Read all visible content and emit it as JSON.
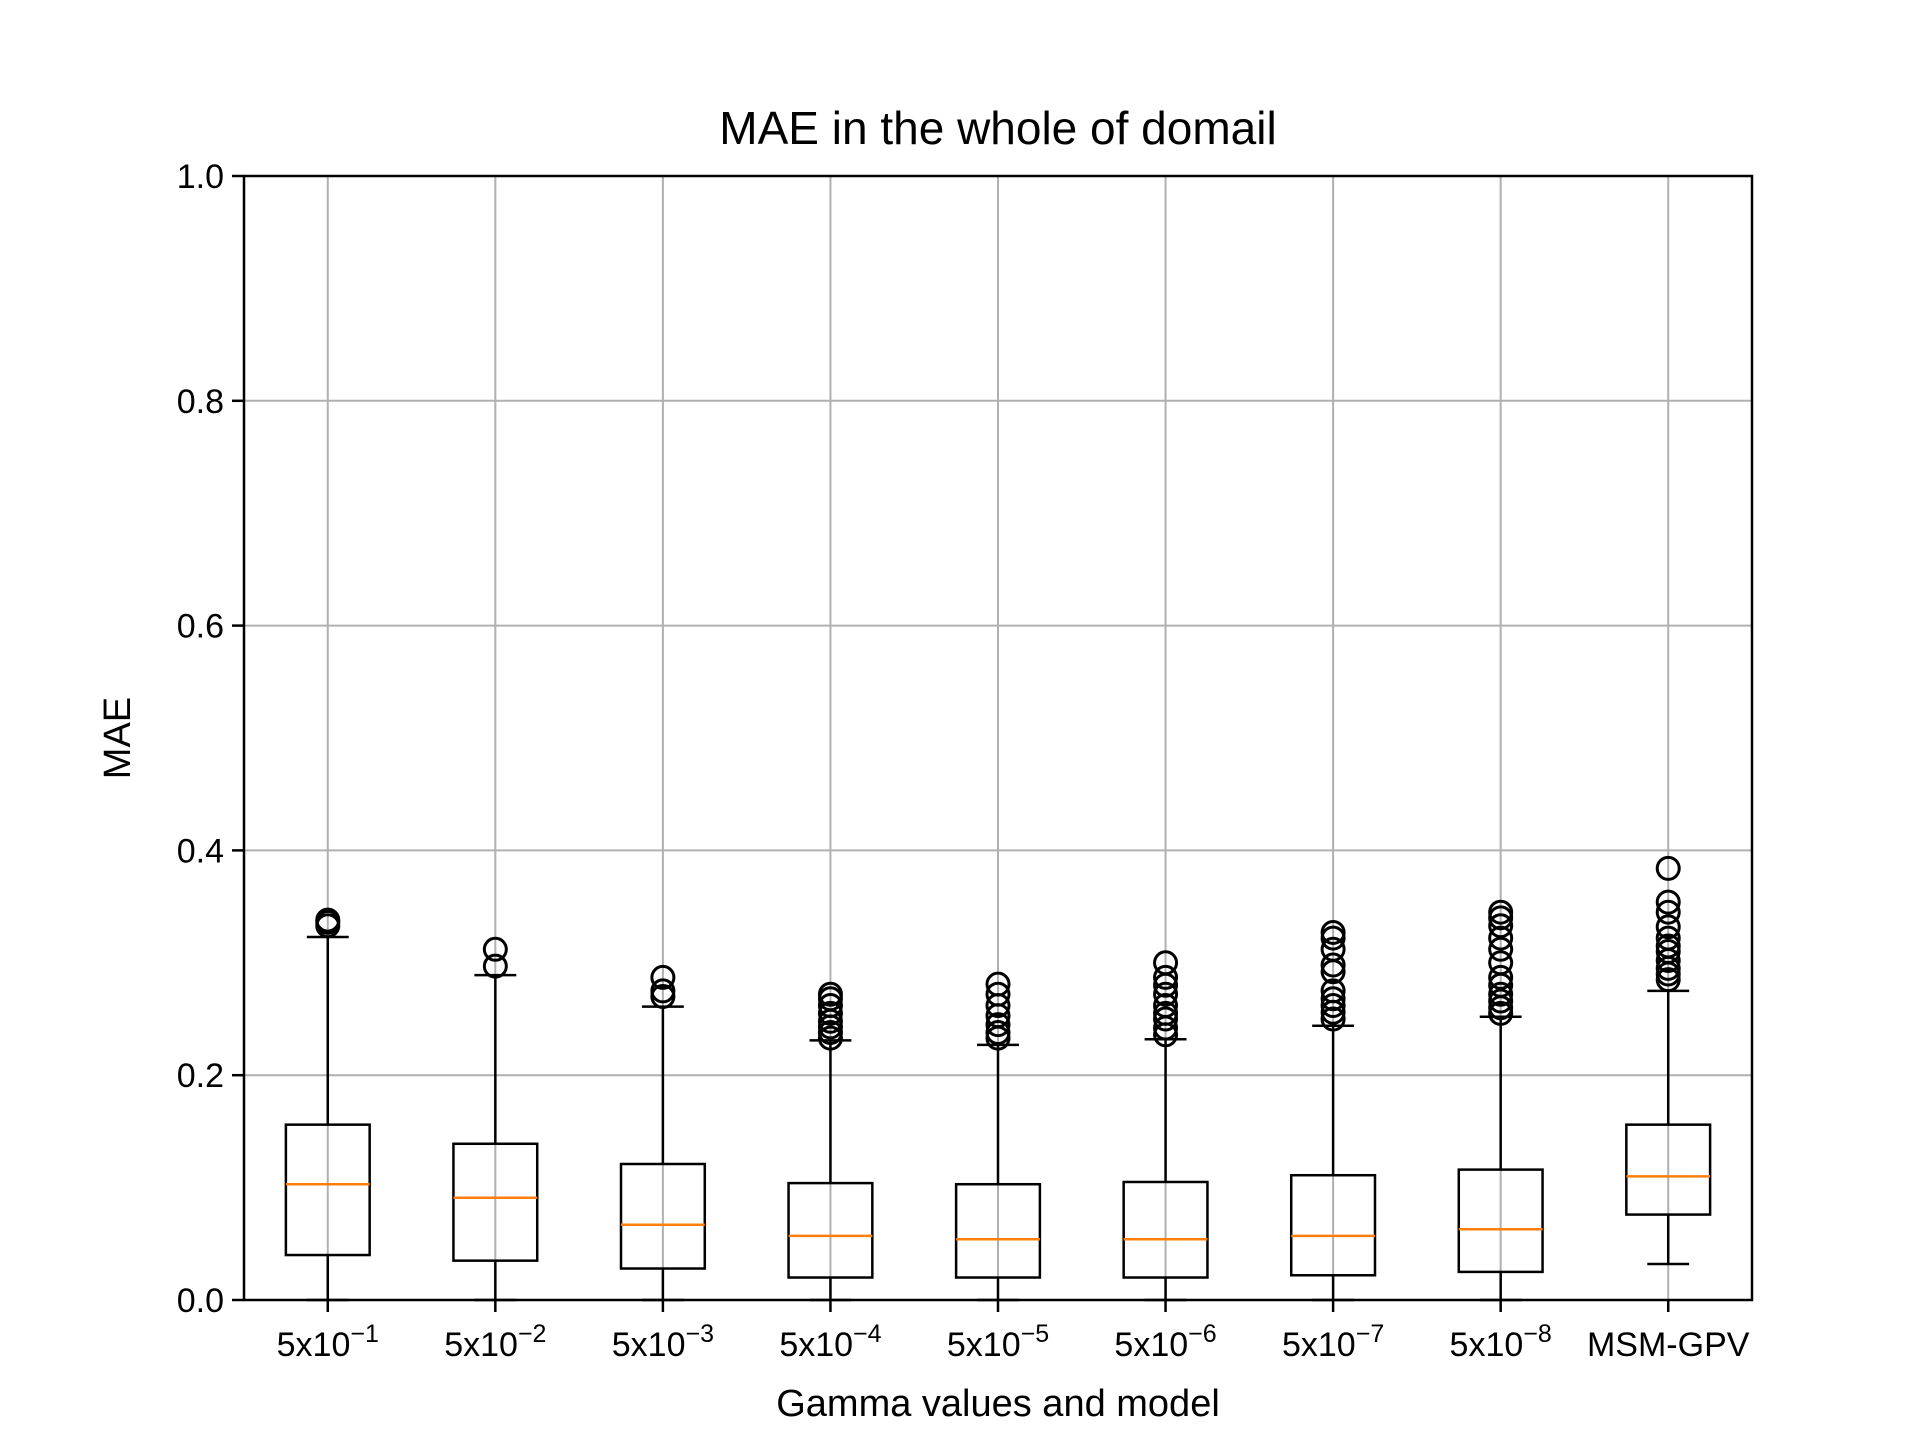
{
  "chart_data": {
    "type": "box",
    "title": "MAE in the whole of domail",
    "xlabel": "Gamma values and model",
    "ylabel": "MAE",
    "ylim": [
      0.0,
      1.0
    ],
    "yticks": [
      0.0,
      0.2,
      0.4,
      0.6,
      0.8,
      1.0
    ],
    "ytick_labels": [
      "0.0",
      "0.2",
      "0.4",
      "0.6",
      "0.8",
      "1.0"
    ],
    "grid": true,
    "colors": {
      "box": "#000000",
      "median": "#ff7f0e",
      "grid": "#b0b0b0"
    },
    "categories": [
      {
        "base": "5x10",
        "exp": "−1"
      },
      {
        "base": "5x10",
        "exp": "−2"
      },
      {
        "base": "5x10",
        "exp": "−3"
      },
      {
        "base": "5x10",
        "exp": "−4"
      },
      {
        "base": "5x10",
        "exp": "−5"
      },
      {
        "base": "5x10",
        "exp": "−6"
      },
      {
        "base": "5x10",
        "exp": "−7"
      },
      {
        "base": "5x10",
        "exp": "−8"
      },
      {
        "base": "MSM-GPV",
        "exp": ""
      }
    ],
    "boxes": [
      {
        "whislo": 0.0,
        "q1": 0.04,
        "med": 0.103,
        "q3": 0.156,
        "whishi": 0.323,
        "fliers": [
          0.333,
          0.336,
          0.338
        ]
      },
      {
        "whislo": 0.0,
        "q1": 0.035,
        "med": 0.091,
        "q3": 0.139,
        "whishi": 0.289,
        "fliers": [
          0.297,
          0.312
        ]
      },
      {
        "whislo": 0.0,
        "q1": 0.028,
        "med": 0.067,
        "q3": 0.121,
        "whishi": 0.261,
        "fliers": [
          0.27,
          0.275,
          0.287
        ]
      },
      {
        "whislo": 0.0,
        "q1": 0.02,
        "med": 0.057,
        "q3": 0.104,
        "whishi": 0.231,
        "fliers": [
          0.233,
          0.238,
          0.243,
          0.248,
          0.255,
          0.262,
          0.268,
          0.272
        ]
      },
      {
        "whislo": 0.0,
        "q1": 0.02,
        "med": 0.054,
        "q3": 0.103,
        "whishi": 0.227,
        "fliers": [
          0.233,
          0.238,
          0.245,
          0.253,
          0.262,
          0.272,
          0.281
        ]
      },
      {
        "whislo": 0.0,
        "q1": 0.02,
        "med": 0.054,
        "q3": 0.105,
        "whishi": 0.232,
        "fliers": [
          0.236,
          0.242,
          0.25,
          0.255,
          0.262,
          0.272,
          0.28,
          0.287,
          0.3
        ]
      },
      {
        "whislo": 0.0,
        "q1": 0.022,
        "med": 0.057,
        "q3": 0.111,
        "whishi": 0.244,
        "fliers": [
          0.25,
          0.256,
          0.262,
          0.268,
          0.275,
          0.292,
          0.298,
          0.312,
          0.322,
          0.327
        ]
      },
      {
        "whislo": 0.0,
        "q1": 0.025,
        "med": 0.063,
        "q3": 0.116,
        "whishi": 0.252,
        "fliers": [
          0.255,
          0.26,
          0.266,
          0.272,
          0.28,
          0.287,
          0.3,
          0.312,
          0.322,
          0.333,
          0.34,
          0.345
        ]
      },
      {
        "whislo": 0.032,
        "q1": 0.076,
        "med": 0.11,
        "q3": 0.156,
        "whishi": 0.275,
        "fliers": [
          0.285,
          0.29,
          0.295,
          0.302,
          0.31,
          0.315,
          0.322,
          0.332,
          0.345,
          0.354,
          0.384
        ]
      }
    ]
  }
}
